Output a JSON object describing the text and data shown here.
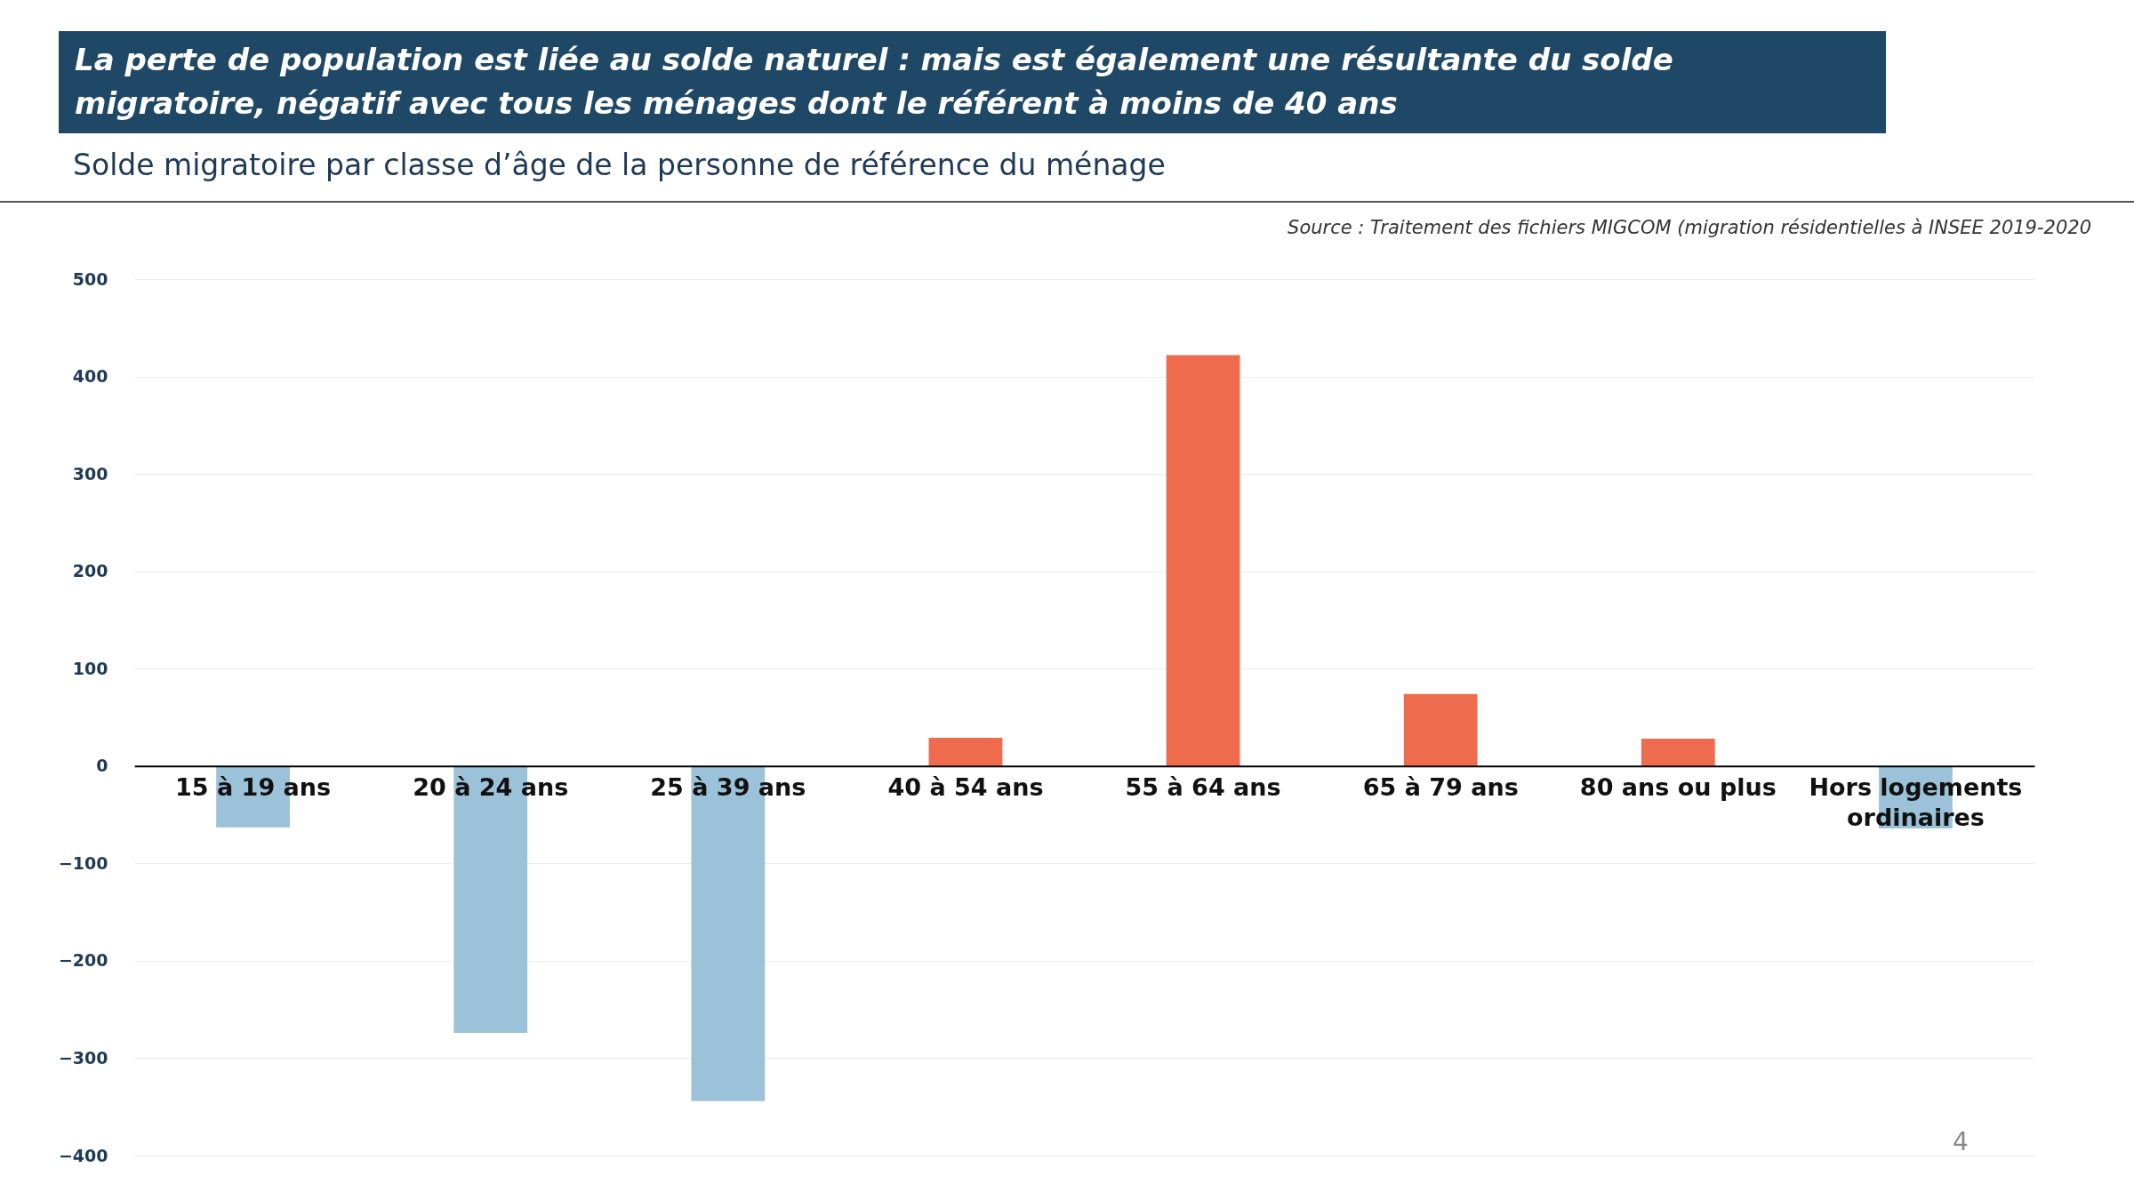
{
  "chart_data": {
    "type": "bar",
    "title": "La perte de population est liée au solde naturel : mais est également une résultante du solde migratoire, négatif avec tous les ménages dont le référent à moins de 40 ans",
    "subtitle": "Solde migratoire par classe d’âge de la personne de référence du ménage",
    "annotations": [
      "Source : Traitement des fichiers MIGCOM (migration résidentielles à INSEE 2019-2020",
      "4"
    ],
    "categories": [
      "15 à 19 ans",
      "20 à 24 ans",
      "25 à 39 ans",
      "40 à 54 ans",
      "55 à 64 ans",
      "65 à 79 ans",
      "80 ans ou plus",
      "Hors logements ordinaires"
    ],
    "values": [
      -63,
      -274,
      -344,
      29,
      422,
      74,
      28,
      -64
    ],
    "colors": [
      "#9cc2da",
      "#9cc2da",
      "#9cc2da",
      "#ee6b4e",
      "#ee6b4e",
      "#ee6b4e",
      "#ee6b4e",
      "#9cc2da"
    ],
    "ylim": [
      -400,
      500
    ],
    "yticks": [
      -400,
      -300,
      -200,
      -100,
      0,
      100,
      200,
      300,
      400,
      500
    ],
    "grid": "y"
  }
}
